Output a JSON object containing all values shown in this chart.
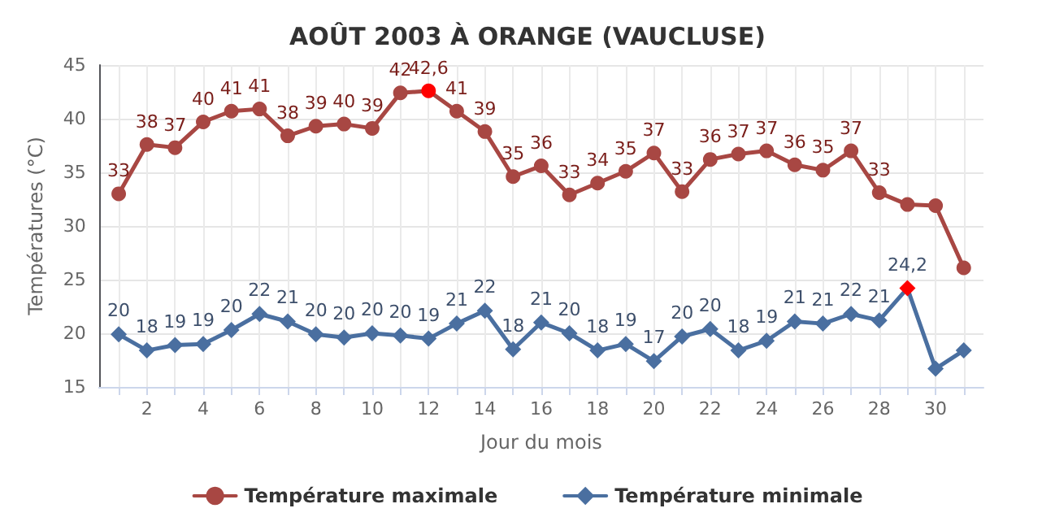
{
  "chart_data": {
    "type": "line",
    "title": "AOÛT 2003 À ORANGE (VAUCLUSE)",
    "xlabel": "Jour du mois",
    "ylabel": "Températures (°C)",
    "x": [
      1,
      2,
      3,
      4,
      5,
      6,
      7,
      8,
      9,
      10,
      11,
      12,
      13,
      14,
      15,
      16,
      17,
      18,
      19,
      20,
      21,
      22,
      23,
      24,
      25,
      26,
      27,
      28,
      29,
      30,
      31
    ],
    "xlim": [
      0.3,
      31.7
    ],
    "xticks": [
      {
        "value": 1,
        "label": null
      },
      2,
      {
        "value": 3,
        "label": null
      },
      4,
      {
        "value": 5,
        "label": null
      },
      6,
      {
        "value": 7,
        "label": null
      },
      8,
      {
        "value": 9,
        "label": null
      },
      10,
      {
        "value": 11,
        "label": null
      },
      12,
      {
        "value": 13,
        "label": null
      },
      14,
      {
        "value": 15,
        "label": null
      },
      16,
      {
        "value": 17,
        "label": null
      },
      18,
      {
        "value": 19,
        "label": null
      },
      20,
      {
        "value": 21,
        "label": null
      },
      22,
      {
        "value": 23,
        "label": null
      },
      24,
      {
        "value": 25,
        "label": null
      },
      26,
      {
        "value": 27,
        "label": null
      },
      28,
      {
        "value": 29,
        "label": null
      },
      30,
      {
        "value": 31,
        "label": null
      }
    ],
    "ylim": [
      15,
      45
    ],
    "yticks": [
      15,
      20,
      25,
      30,
      35,
      40,
      45
    ],
    "grid": true,
    "legend": "bottom",
    "line_style": "solid",
    "series": [
      {
        "name": "Température maximale",
        "color": "#a84743",
        "marker": "circle",
        "values": [
          33.0,
          37.6,
          37.3,
          39.7,
          40.7,
          40.9,
          38.4,
          39.3,
          39.5,
          39.1,
          42.4,
          42.6,
          40.7,
          38.8,
          34.6,
          35.6,
          32.9,
          34.0,
          35.1,
          36.8,
          33.2,
          36.2,
          36.7,
          37.0,
          35.7,
          35.2,
          37.0,
          33.1,
          32.0,
          31.9,
          26.1
        ],
        "colors": [
          "#a84743",
          "#a84743",
          "#a84743",
          "#a84743",
          "#a84743",
          "#a84743",
          "#a84743",
          "#a84743",
          "#a84743",
          "#a84743",
          "#a84743",
          "#ff0000",
          "#a84743",
          "#a84743",
          "#a84743",
          "#a84743",
          "#a84743",
          "#a84743",
          "#a84743",
          "#a84743",
          "#a84743",
          "#a84743",
          "#a84743",
          "#a84743",
          "#a84743",
          "#a84743",
          "#a84743",
          "#a84743",
          "#a84743",
          "#a84743",
          "#a84743"
        ],
        "value_labels": [
          "33",
          "38",
          "37",
          "40",
          "41",
          "41",
          "38",
          "39",
          "40",
          "39",
          "42",
          "42,6",
          "41",
          "39",
          "35",
          "36",
          "33",
          "34",
          "35",
          "37",
          "33",
          "36",
          "37",
          "37",
          "36",
          "35",
          "37",
          "33",
          null,
          null,
          null
        ]
      },
      {
        "name": "Température minimale",
        "color": "#4a6fa0",
        "marker": "diamond",
        "values": [
          19.9,
          18.4,
          18.9,
          19.0,
          20.3,
          21.8,
          21.1,
          19.9,
          19.6,
          20.0,
          19.8,
          19.5,
          20.9,
          22.1,
          18.5,
          21.0,
          20.0,
          18.4,
          19.0,
          17.4,
          19.7,
          20.4,
          18.4,
          19.3,
          21.1,
          20.9,
          21.8,
          21.2,
          24.2,
          16.7,
          18.4
        ],
        "colors": [
          "#4a6fa0",
          "#4a6fa0",
          "#4a6fa0",
          "#4a6fa0",
          "#4a6fa0",
          "#4a6fa0",
          "#4a6fa0",
          "#4a6fa0",
          "#4a6fa0",
          "#4a6fa0",
          "#4a6fa0",
          "#4a6fa0",
          "#4a6fa0",
          "#4a6fa0",
          "#4a6fa0",
          "#4a6fa0",
          "#4a6fa0",
          "#4a6fa0",
          "#4a6fa0",
          "#4a6fa0",
          "#4a6fa0",
          "#4a6fa0",
          "#4a6fa0",
          "#4a6fa0",
          "#4a6fa0",
          "#4a6fa0",
          "#4a6fa0",
          "#4a6fa0",
          "#ff0000",
          "#4a6fa0",
          "#4a6fa0"
        ],
        "value_labels": [
          "20",
          "18",
          "19",
          "19",
          "20",
          "22",
          "21",
          "20",
          "20",
          "20",
          "20",
          "19",
          "21",
          "22",
          "18",
          "21",
          "20",
          "18",
          "19",
          "17",
          "20",
          "20",
          "18",
          "19",
          "21",
          "21",
          "22",
          "21",
          "24,2",
          null,
          null
        ]
      }
    ]
  }
}
